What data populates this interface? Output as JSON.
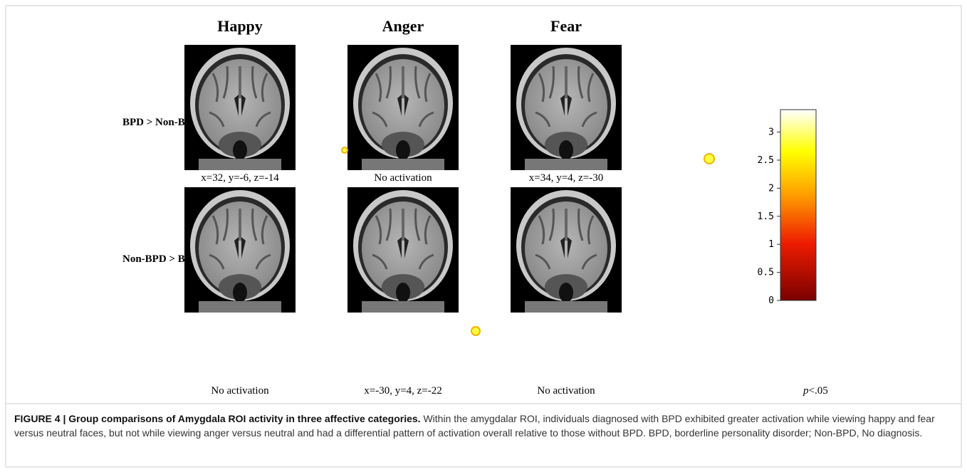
{
  "figure": {
    "column_headers": [
      "Happy",
      "Anger",
      "Fear"
    ],
    "row_headers": [
      "BPD > Non-BPD",
      "Non-BPD > BPD"
    ],
    "panel_captions": [
      [
        "x=32, y=-6, z=-14",
        "No activation",
        "x=34, y=4, z=-30"
      ],
      [
        "No activation",
        "x=-30, y=4, z=-22",
        "No activation"
      ]
    ],
    "colorbar": {
      "lim": [
        0,
        3.4
      ],
      "ticks": [
        0,
        0.5,
        1,
        1.5,
        2,
        2.5,
        3
      ]
    },
    "significance": {
      "symbol": "p",
      "threshold": "<.05"
    }
  },
  "caption": {
    "label": "FIGURE 4 | Group comparisons of Amygdala ROI activity in three affective categories.",
    "text": "Within the amygdalar ROI, individuals diagnosed with BPD exhibited greater activation while viewing happy and fear versus neutral faces, but not while viewing anger versus neutral and had a differential pattern of activation overall relative to those without BPD. BPD, borderline personality disorder; Non-BPD, No diagnosis."
  }
}
